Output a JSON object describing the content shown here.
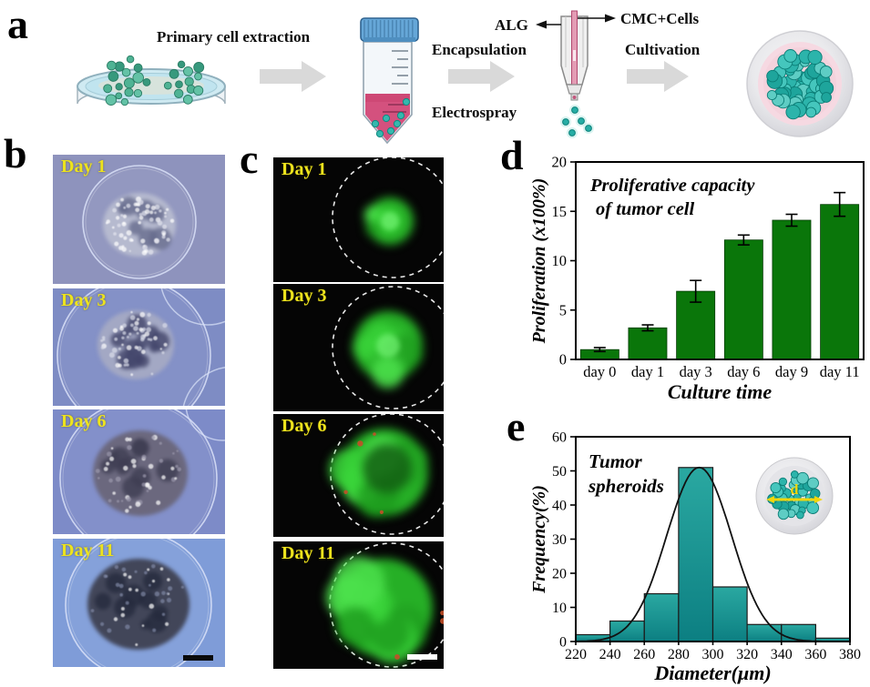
{
  "panels": {
    "a": "a",
    "b": "b",
    "c": "c",
    "d": "d",
    "e": "e"
  },
  "schematic": {
    "primary_cell_extraction": "Primary cell extraction",
    "encapsulation": "Encapsulation",
    "electrospray": "Electrospray",
    "alg_label": "ALG",
    "cmc_cells_label": "CMC+Cells",
    "cultivation": "Cultivation"
  },
  "panel_b": {
    "labels": [
      "Day 1",
      "Day 3",
      "Day 6",
      "Day 11"
    ]
  },
  "panel_c": {
    "labels": [
      "Day 1",
      "Day 3",
      "Day 6",
      "Day 11"
    ]
  },
  "chart_data": [
    {
      "id": "proliferation-bar-chart",
      "type": "bar",
      "title": "Proliferative capacity\nof tumor cell",
      "categories": [
        "day 0",
        "day 1",
        "day 3",
        "day 6",
        "day 9",
        "day 11"
      ],
      "values": [
        1.0,
        3.2,
        6.9,
        12.1,
        14.1,
        15.7
      ],
      "errors": [
        0.2,
        0.3,
        1.1,
        0.5,
        0.6,
        1.2
      ],
      "xlabel": "Culture time",
      "ylabel": "Proliferation (x100%)",
      "ylim": [
        0,
        20
      ],
      "yticks": [
        0,
        5,
        10,
        15,
        20
      ],
      "bar_color": "#0a760a",
      "grid": false,
      "legend": false
    },
    {
      "id": "diameter-histogram",
      "type": "bar",
      "title": "Tumor\nspheroids",
      "bin_edges": [
        220,
        240,
        260,
        280,
        300,
        320,
        340,
        360,
        380
      ],
      "values": [
        2,
        6,
        14,
        51,
        16,
        5,
        5,
        1
      ],
      "xlabel": "Diameter(μm)",
      "ylabel": "Frequency(%)",
      "xlim": [
        220,
        380
      ],
      "ylim": [
        0,
        60
      ],
      "yticks": [
        0,
        10,
        20,
        30,
        40,
        50,
        60
      ],
      "xticks": [
        220,
        240,
        260,
        280,
        300,
        320,
        340,
        360,
        380
      ],
      "bar_color_top": "#2aa8a1",
      "bar_color_bottom": "#0c7f82",
      "fit_curve": {
        "type": "gaussian",
        "amplitude": 51,
        "mean": 292,
        "sigma": 19
      },
      "inset_label": "d",
      "grid": false,
      "legend": false
    }
  ],
  "colors": {
    "day_label": "#ede31d",
    "bar_green": "#0a760a",
    "hist_teal_top": "#2aa8a1",
    "hist_teal_bottom": "#0c7f82",
    "fluorescence_green": "#2fc62f"
  }
}
